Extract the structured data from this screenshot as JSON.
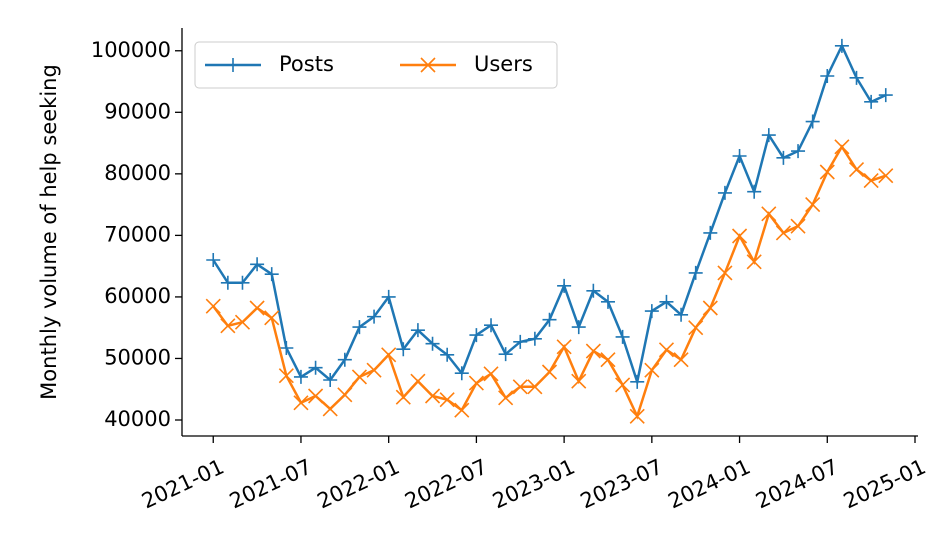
{
  "chart_data": {
    "type": "line",
    "ylabel": "Monthly volume of help seeking",
    "x": [
      "2021-01",
      "2021-02",
      "2021-03",
      "2021-04",
      "2021-05",
      "2021-06",
      "2021-07",
      "2021-08",
      "2021-09",
      "2021-10",
      "2021-11",
      "2021-12",
      "2022-01",
      "2022-02",
      "2022-03",
      "2022-04",
      "2022-05",
      "2022-06",
      "2022-07",
      "2022-08",
      "2022-09",
      "2022-10",
      "2022-11",
      "2022-12",
      "2023-01",
      "2023-02",
      "2023-03",
      "2023-04",
      "2023-05",
      "2023-06",
      "2023-07",
      "2023-08",
      "2023-09",
      "2023-10",
      "2023-11",
      "2023-12",
      "2024-01",
      "2024-02",
      "2024-03",
      "2024-04",
      "2024-05",
      "2024-06",
      "2024-07",
      "2024-08",
      "2024-09",
      "2024-10",
      "2024-11"
    ],
    "series": [
      {
        "name": "Posts",
        "color": "#1f77b4",
        "marker": "+",
        "values": [
          66000,
          62300,
          62300,
          65300,
          63700,
          51700,
          47000,
          48500,
          46500,
          49800,
          55100,
          56800,
          60000,
          51500,
          54600,
          52400,
          50600,
          47600,
          53800,
          55400,
          50700,
          52700,
          53200,
          56300,
          61800,
          55100,
          61000,
          59200,
          53500,
          46200,
          57700,
          59200,
          57100,
          63900,
          70400,
          76900,
          82900,
          77100,
          86300,
          82600,
          83700,
          88500,
          95900,
          100800,
          95600,
          91700,
          92800
        ]
      },
      {
        "name": "Users",
        "color": "#ff7f0e",
        "marker": "x",
        "values": [
          58500,
          55300,
          55900,
          58200,
          56600,
          47200,
          42800,
          43900,
          41800,
          44100,
          47000,
          48100,
          50600,
          43700,
          46300,
          43900,
          43300,
          41600,
          46000,
          47500,
          43600,
          45400,
          45400,
          47800,
          51900,
          46300,
          51200,
          49800,
          45700,
          40600,
          48100,
          51400,
          49800,
          55000,
          58200,
          63900,
          69900,
          65700,
          73500,
          70400,
          71500,
          75000,
          80300,
          84400,
          80700,
          78900,
          79700
        ]
      }
    ],
    "xlim": [
      "2020-11",
      "2025-01"
    ],
    "xticks": [
      "2021-01",
      "2021-07",
      "2022-01",
      "2022-07",
      "2023-01",
      "2023-07",
      "2024-01",
      "2024-07",
      "2025-01"
    ],
    "ylim": [
      37400,
      103700
    ],
    "yticks": [
      40000,
      50000,
      60000,
      70000,
      80000,
      90000,
      100000
    ],
    "legend": "upper left"
  }
}
